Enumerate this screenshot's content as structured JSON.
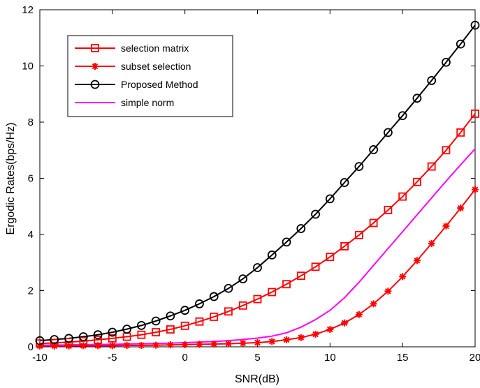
{
  "chart_data": {
    "type": "line",
    "title": "",
    "xlabel": "SNR(dB)",
    "ylabel": "Ergodic Rates(bps/Hz)",
    "xlim": [
      -10,
      20
    ],
    "ylim": [
      0,
      12
    ],
    "xticks": [
      "-10",
      "-5",
      "0",
      "5",
      "10",
      "15",
      "20"
    ],
    "yticks": [
      "0",
      "2",
      "4",
      "6",
      "8",
      "10",
      "12"
    ],
    "grid": false,
    "legend_position": "top-left",
    "x": [
      -10,
      -9,
      -8,
      -7,
      -6,
      -5,
      -4,
      -3,
      -2,
      -1,
      0,
      1,
      2,
      3,
      4,
      5,
      6,
      7,
      8,
      9,
      10,
      11,
      12,
      13,
      14,
      15,
      16,
      17,
      18,
      19,
      20
    ],
    "series": [
      {
        "name": "selection matrix",
        "color": "#ff0000",
        "marker": "square",
        "values": [
          0.12,
          0.14,
          0.17,
          0.2,
          0.25,
          0.3,
          0.36,
          0.43,
          0.52,
          0.62,
          0.75,
          0.9,
          1.07,
          1.26,
          1.47,
          1.7,
          1.95,
          2.23,
          2.53,
          2.85,
          3.2,
          3.58,
          3.98,
          4.41,
          4.87,
          5.35,
          5.87,
          6.42,
          7.0,
          7.63,
          8.3
        ]
      },
      {
        "name": "subset selection",
        "color": "#ff0000",
        "marker": "star",
        "values": [
          0.03,
          0.03,
          0.03,
          0.04,
          0.04,
          0.04,
          0.05,
          0.05,
          0.06,
          0.07,
          0.08,
          0.09,
          0.1,
          0.11,
          0.13,
          0.15,
          0.19,
          0.25,
          0.33,
          0.45,
          0.62,
          0.85,
          1.15,
          1.53,
          1.98,
          2.5,
          3.07,
          3.68,
          4.3,
          4.94,
          5.6
        ]
      },
      {
        "name": "Proposed Method",
        "color": "#000000",
        "marker": "circle",
        "values": [
          0.22,
          0.26,
          0.3,
          0.36,
          0.43,
          0.52,
          0.63,
          0.76,
          0.92,
          1.1,
          1.3,
          1.53,
          1.79,
          2.08,
          2.42,
          2.82,
          3.27,
          3.73,
          4.21,
          4.72,
          5.27,
          5.85,
          6.42,
          7.02,
          7.63,
          8.23,
          8.85,
          9.48,
          10.13,
          10.78,
          11.45
        ]
      },
      {
        "name": "simple norm",
        "color": "#ff00ff",
        "marker": "none",
        "values": [
          0.06,
          0.06,
          0.07,
          0.08,
          0.08,
          0.09,
          0.1,
          0.11,
          0.12,
          0.13,
          0.15,
          0.17,
          0.19,
          0.22,
          0.26,
          0.31,
          0.38,
          0.5,
          0.7,
          0.97,
          1.3,
          1.75,
          2.3,
          2.9,
          3.5,
          4.1,
          4.7,
          5.3,
          5.9,
          6.48,
          7.05
        ]
      }
    ]
  }
}
